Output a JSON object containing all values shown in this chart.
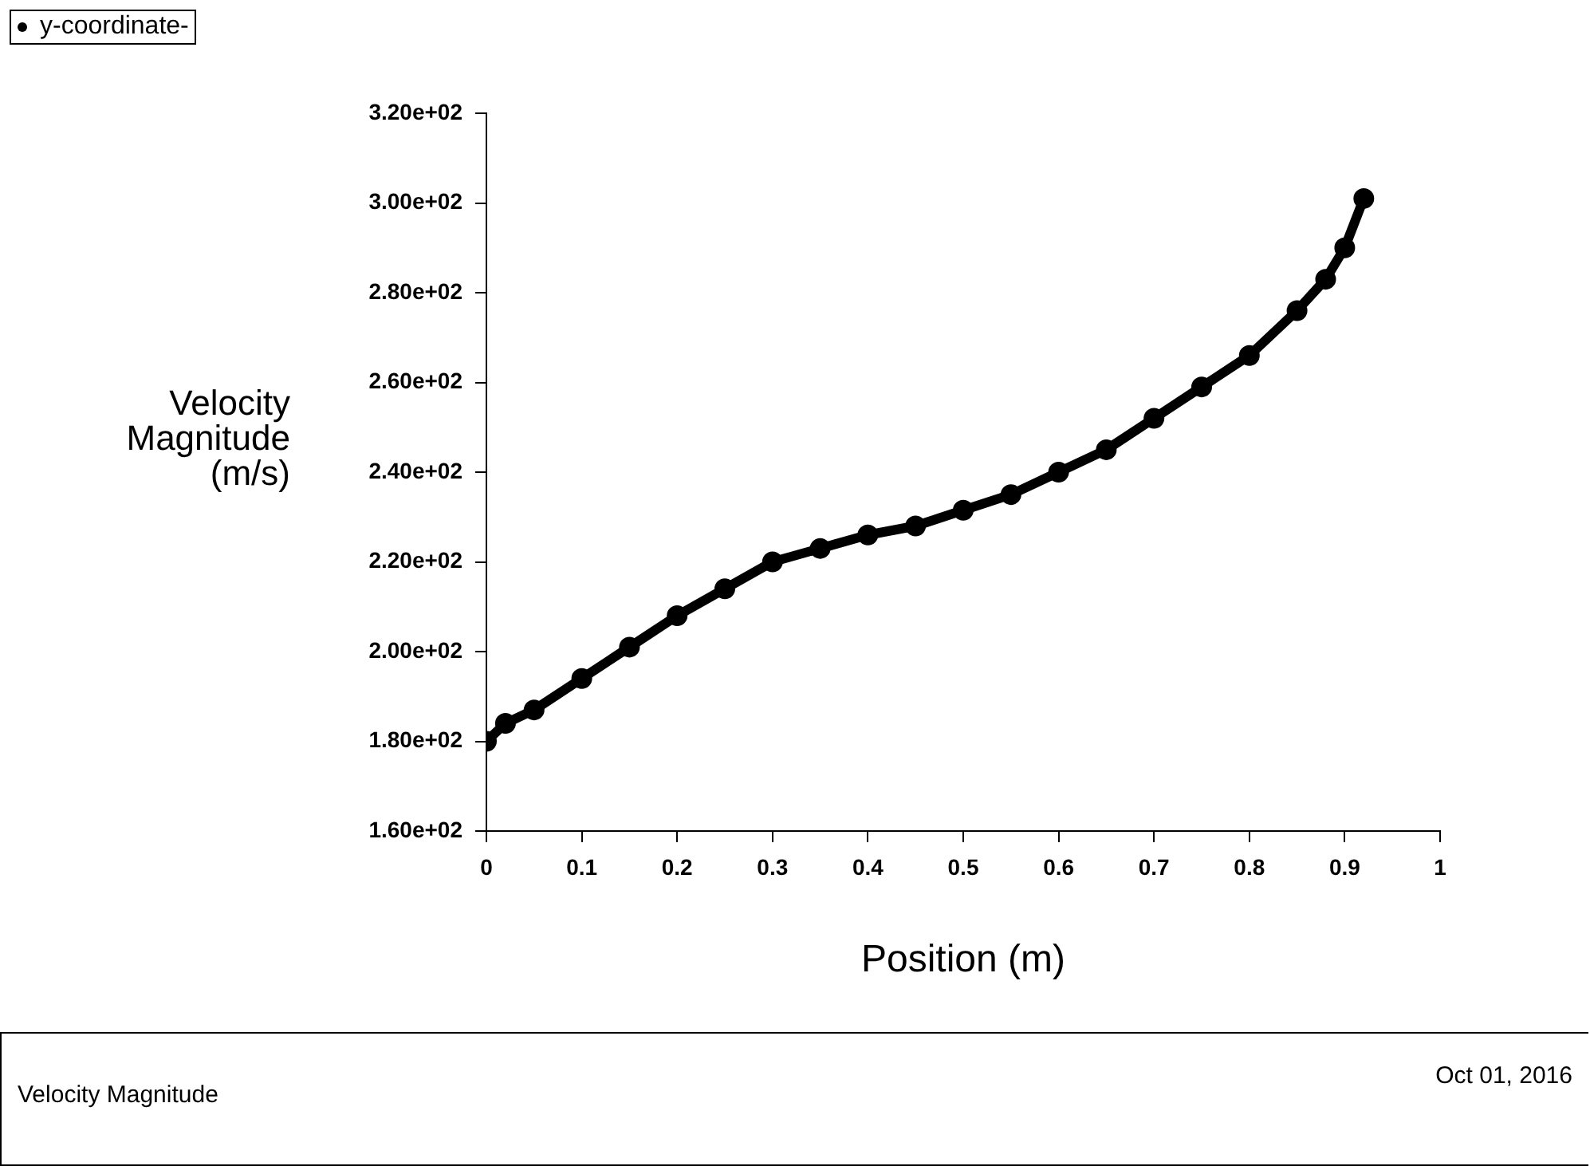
{
  "chart_data": {
    "type": "line",
    "xlabel": "Position (m)",
    "ylabel": "Velocity Magnitude (m/s)",
    "x": [
      0,
      0.02,
      0.05,
      0.1,
      0.15,
      0.2,
      0.25,
      0.3,
      0.35,
      0.4,
      0.45,
      0.5,
      0.55,
      0.6,
      0.65,
      0.7,
      0.75,
      0.8,
      0.85,
      0.88,
      0.9,
      0.92
    ],
    "series": [
      {
        "name": "y-coordinate-",
        "color": "#000000",
        "values": [
          180,
          184,
          187,
          194,
          201,
          208,
          214,
          220,
          223,
          226,
          228,
          231.5,
          235,
          240,
          245,
          252,
          259,
          266,
          276,
          283,
          290,
          301
        ]
      }
    ],
    "xlim": [
      0,
      1
    ],
    "xticks": [
      0,
      0.1,
      0.2,
      0.3,
      0.4,
      0.5,
      0.6,
      0.7,
      0.8,
      0.9,
      1
    ],
    "ylim": [
      160,
      320
    ],
    "yticks": [
      {
        "value": 160,
        "label": "1.60e+02"
      },
      {
        "value": 180,
        "label": "1.80e+02"
      },
      {
        "value": 200,
        "label": "2.00e+02"
      },
      {
        "value": 220,
        "label": "2.20e+02"
      },
      {
        "value": 240,
        "label": "2.40e+02"
      },
      {
        "value": 260,
        "label": "2.60e+02"
      },
      {
        "value": 280,
        "label": "2.80e+02"
      },
      {
        "value": 300,
        "label": "3.00e+02"
      },
      {
        "value": 320,
        "label": "3.20e+02"
      }
    ],
    "grid": false,
    "legend": "top left",
    "marker": "circle",
    "line_style": "solid",
    "annotations": [
      "Velocity Magnitude",
      "Oct 01, 2016"
    ]
  }
}
